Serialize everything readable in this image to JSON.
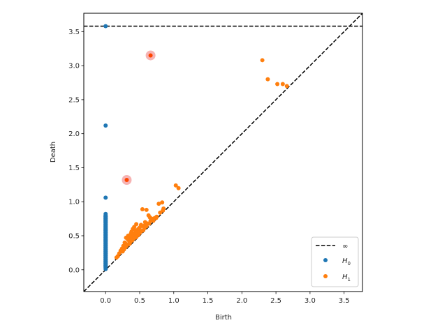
{
  "chart_data": {
    "type": "scatter",
    "title": "",
    "xlabel": "Birth",
    "ylabel": "Death",
    "xlim": [
      -0.32,
      3.77
    ],
    "ylim": [
      -0.32,
      3.77
    ],
    "xticks": [
      "0.0",
      "0.5",
      "1.0",
      "1.5",
      "2.0",
      "2.5",
      "3.0",
      "3.5"
    ],
    "yticks": [
      "0.0",
      "0.5",
      "1.0",
      "1.5",
      "2.0",
      "2.5",
      "3.0",
      "3.5"
    ],
    "grid": false,
    "legend_position": "lower right",
    "infinity_line": 3.58,
    "diagonal": true,
    "legend": [
      {
        "label": "∞",
        "type": "dashed-line",
        "color": "#000000"
      },
      {
        "label": "H0",
        "sub": "0",
        "type": "marker",
        "color": "#1f77b4"
      },
      {
        "label": "H1",
        "sub": "1",
        "type": "marker",
        "color": "#ff7f0e"
      }
    ],
    "series": [
      {
        "name": "H0",
        "color": "#1f77b4",
        "points": [
          [
            0,
            3.58
          ],
          [
            0,
            2.12
          ],
          [
            0,
            1.06
          ],
          [
            0,
            0.82
          ],
          [
            0,
            0.8
          ],
          [
            0,
            0.78
          ],
          [
            0,
            0.75
          ],
          [
            0,
            0.72
          ],
          [
            0,
            0.7
          ],
          [
            0,
            0.66
          ],
          [
            0,
            0.63
          ],
          [
            0,
            0.6
          ],
          [
            0,
            0.58
          ],
          [
            0,
            0.55
          ],
          [
            0,
            0.52
          ],
          [
            0,
            0.5
          ],
          [
            0,
            0.47
          ],
          [
            0,
            0.44
          ],
          [
            0,
            0.42
          ],
          [
            0,
            0.39
          ],
          [
            0,
            0.36
          ],
          [
            0,
            0.33
          ],
          [
            0,
            0.3
          ],
          [
            0,
            0.27
          ],
          [
            0,
            0.24
          ],
          [
            0,
            0.21
          ],
          [
            0,
            0.18
          ],
          [
            0,
            0.15
          ],
          [
            0,
            0.12
          ],
          [
            0,
            0.09
          ],
          [
            0,
            0.06
          ],
          [
            0,
            0.03
          ],
          [
            0,
            0.01
          ]
        ]
      },
      {
        "name": "H1",
        "color": "#ff7f0e",
        "points": [
          [
            2.3,
            3.08
          ],
          [
            2.38,
            2.8
          ],
          [
            2.52,
            2.73
          ],
          [
            2.6,
            2.73
          ],
          [
            2.66,
            2.7
          ],
          [
            1.03,
            1.24
          ],
          [
            1.07,
            1.2
          ],
          [
            0.78,
            0.97
          ],
          [
            0.83,
            0.99
          ],
          [
            0.85,
            0.9
          ],
          [
            0.84,
            0.87
          ],
          [
            0.8,
            0.84
          ],
          [
            0.54,
            0.89
          ],
          [
            0.6,
            0.88
          ],
          [
            0.63,
            0.8
          ],
          [
            0.65,
            0.77
          ],
          [
            0.68,
            0.75
          ],
          [
            0.66,
            0.72
          ],
          [
            0.72,
            0.76
          ],
          [
            0.75,
            0.78
          ],
          [
            0.62,
            0.68
          ],
          [
            0.58,
            0.7
          ],
          [
            0.55,
            0.64
          ],
          [
            0.52,
            0.66
          ],
          [
            0.5,
            0.62
          ],
          [
            0.48,
            0.6
          ],
          [
            0.45,
            0.67
          ],
          [
            0.42,
            0.63
          ],
          [
            0.4,
            0.6
          ],
          [
            0.44,
            0.58
          ],
          [
            0.46,
            0.55
          ],
          [
            0.41,
            0.52
          ],
          [
            0.38,
            0.56
          ],
          [
            0.36,
            0.5
          ],
          [
            0.34,
            0.48
          ],
          [
            0.3,
            0.47
          ],
          [
            0.33,
            0.44
          ],
          [
            0.35,
            0.42
          ],
          [
            0.38,
            0.45
          ],
          [
            0.4,
            0.48
          ],
          [
            0.43,
            0.5
          ],
          [
            0.47,
            0.52
          ],
          [
            0.51,
            0.56
          ],
          [
            0.55,
            0.58
          ],
          [
            0.3,
            0.38
          ],
          [
            0.28,
            0.4
          ],
          [
            0.32,
            0.37
          ],
          [
            0.26,
            0.35
          ],
          [
            0.29,
            0.33
          ],
          [
            0.24,
            0.31
          ],
          [
            0.27,
            0.3
          ],
          [
            0.22,
            0.28
          ],
          [
            0.25,
            0.27
          ],
          [
            0.2,
            0.24
          ],
          [
            0.18,
            0.2
          ],
          [
            0.16,
            0.18
          ],
          [
            0.36,
            0.4
          ],
          [
            0.42,
            0.46
          ],
          [
            0.48,
            0.51
          ],
          [
            0.53,
            0.57
          ],
          [
            0.57,
            0.61
          ],
          [
            0.6,
            0.64
          ],
          [
            0.64,
            0.68
          ],
          [
            0.7,
            0.72
          ],
          [
            0.74,
            0.76
          ],
          [
            0.39,
            0.43
          ],
          [
            0.45,
            0.48
          ],
          [
            0.5,
            0.54
          ],
          [
            0.31,
            0.35
          ],
          [
            0.35,
            0.38
          ],
          [
            0.33,
            0.5
          ],
          [
            0.37,
            0.53
          ],
          [
            0.43,
            0.54
          ],
          [
            0.58,
            0.66
          ]
        ]
      }
    ],
    "highlighted": [
      {
        "x": 0.66,
        "y": 3.15,
        "color": "#ff4500",
        "halo": "#f08080"
      },
      {
        "x": 0.31,
        "y": 1.32,
        "color": "#ff4500",
        "halo": "#f08080"
      }
    ]
  }
}
